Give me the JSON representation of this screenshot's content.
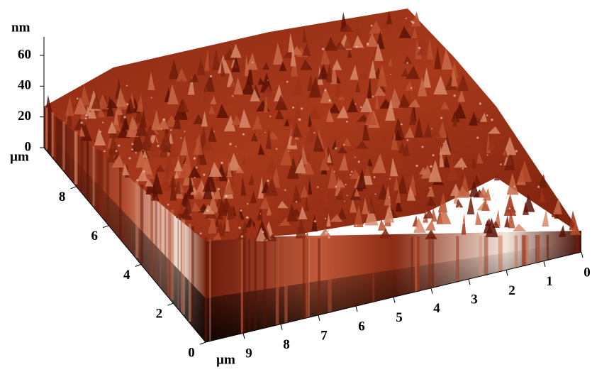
{
  "chart_data": {
    "type": "surface",
    "zlabel": "nm",
    "zlim": [
      0,
      72
    ],
    "zticks": [
      0,
      20,
      40,
      60
    ],
    "ylabel": "µm",
    "ylim": [
      0,
      10
    ],
    "yticks": [
      0,
      2,
      4,
      6,
      8
    ],
    "xlabel": "µm",
    "xlim": [
      0,
      10
    ],
    "xticks": [
      0,
      1,
      2,
      3,
      4,
      5,
      6,
      7,
      8,
      9
    ]
  }
}
